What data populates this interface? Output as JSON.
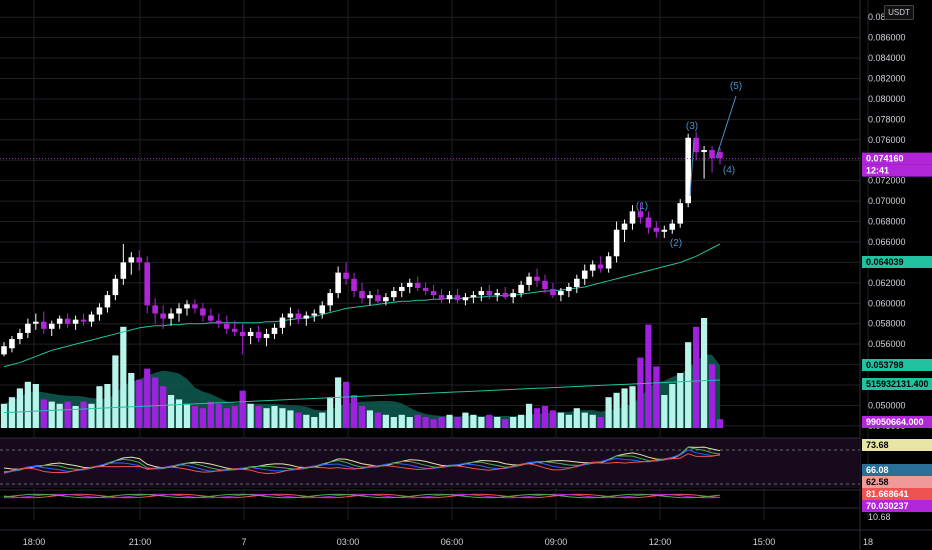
{
  "toolbar": {
    "currency": "USDT"
  },
  "colors": {
    "bull": "#ffffff",
    "bear": "#b126d9",
    "ma": "#22c1a0",
    "vol_bull": "#b8f4ea",
    "vol_bear": "#a020e0",
    "vol_ma": "#0e5b52",
    "grid": "#1e2126"
  },
  "chart_data": {
    "type": "candlestick",
    "price_axis": {
      "ticks": [
        "0.088000",
        "0.086000",
        "0.084000",
        "0.082000",
        "0.080000",
        "0.078000",
        "0.076000",
        "0.074000",
        "0.072000",
        "0.070000",
        "0.068000",
        "0.066000",
        "0.064000",
        "0.062000",
        "0.060000",
        "0.058000",
        "0.056000",
        "0.054000",
        "0.052000",
        "0.050000",
        "0.048000"
      ],
      "range": [
        0.0476,
        0.0889
      ]
    },
    "time_axis": {
      "labels": [
        "18:00",
        "21:00",
        "7",
        "03:00",
        "06:00",
        "09:00",
        "12:00",
        "15:00",
        "18"
      ]
    },
    "last_price": {
      "value": "0.074160",
      "countdown": "12:41"
    },
    "moving_average": {
      "value": "0.064039"
    },
    "indicator_tags": {
      "ma_line2": "0.053798",
      "volume_ma": "515932131.400",
      "volume": "99050664.000",
      "rsi": [
        "73.68",
        "66.08",
        "62.58"
      ],
      "osc": [
        "81.668641",
        "70.030237",
        "10.68"
      ]
    },
    "wave_labels": [
      "(1)",
      "(2)",
      "(3)",
      "(4)",
      "(5)"
    ],
    "candles": [
      [
        0.055,
        0.0562,
        0.0548,
        0.0558
      ],
      [
        0.0556,
        0.0568,
        0.0552,
        0.0565
      ],
      [
        0.0565,
        0.0575,
        0.056,
        0.0571
      ],
      [
        0.0571,
        0.0585,
        0.0566,
        0.058
      ],
      [
        0.058,
        0.059,
        0.0574,
        0.0582
      ],
      [
        0.0582,
        0.0592,
        0.057,
        0.0575
      ],
      [
        0.0575,
        0.0583,
        0.0568,
        0.058
      ],
      [
        0.058,
        0.0588,
        0.0575,
        0.0585
      ],
      [
        0.0585,
        0.059,
        0.0576,
        0.058
      ],
      [
        0.058,
        0.0588,
        0.0574,
        0.0584
      ],
      [
        0.0584,
        0.059,
        0.0578,
        0.0582
      ],
      [
        0.0582,
        0.0592,
        0.0577,
        0.0589
      ],
      [
        0.0589,
        0.06,
        0.0583,
        0.0596
      ],
      [
        0.0596,
        0.0612,
        0.0591,
        0.0608
      ],
      [
        0.0608,
        0.0628,
        0.0603,
        0.0624
      ],
      [
        0.0624,
        0.0658,
        0.0618,
        0.064
      ],
      [
        0.064,
        0.065,
        0.0628,
        0.0645
      ],
      [
        0.0645,
        0.0652,
        0.0632,
        0.064
      ],
      [
        0.064,
        0.0646,
        0.059,
        0.0598
      ],
      [
        0.0598,
        0.0605,
        0.058,
        0.059
      ],
      [
        0.059,
        0.0598,
        0.0575,
        0.0585
      ],
      [
        0.0585,
        0.0595,
        0.0578,
        0.059
      ],
      [
        0.059,
        0.06,
        0.0582,
        0.0595
      ],
      [
        0.0595,
        0.0603,
        0.0588,
        0.0599
      ],
      [
        0.0599,
        0.0604,
        0.059,
        0.0595
      ],
      [
        0.0595,
        0.06,
        0.0582,
        0.0588
      ],
      [
        0.0588,
        0.0595,
        0.058,
        0.0583
      ],
      [
        0.0583,
        0.059,
        0.0576,
        0.058
      ],
      [
        0.058,
        0.0588,
        0.057,
        0.0575
      ],
      [
        0.0575,
        0.0583,
        0.0568,
        0.0572
      ],
      [
        0.0572,
        0.058,
        0.055,
        0.0568
      ],
      [
        0.0568,
        0.0576,
        0.056,
        0.0572
      ],
      [
        0.0572,
        0.0578,
        0.0562,
        0.0566
      ],
      [
        0.0566,
        0.0575,
        0.0558,
        0.057
      ],
      [
        0.057,
        0.058,
        0.0565,
        0.0576
      ],
      [
        0.0576,
        0.059,
        0.057,
        0.0586
      ],
      [
        0.0586,
        0.0596,
        0.0578,
        0.059
      ],
      [
        0.059,
        0.0594,
        0.058,
        0.0585
      ],
      [
        0.0585,
        0.0592,
        0.0578,
        0.0588
      ],
      [
        0.0588,
        0.0594,
        0.0582,
        0.059
      ],
      [
        0.059,
        0.0602,
        0.0585,
        0.0598
      ],
      [
        0.0598,
        0.0614,
        0.0592,
        0.061
      ],
      [
        0.061,
        0.0636,
        0.0605,
        0.063
      ],
      [
        0.063,
        0.064,
        0.0618,
        0.0624
      ],
      [
        0.0624,
        0.063,
        0.0606,
        0.0612
      ],
      [
        0.0612,
        0.062,
        0.06,
        0.0605
      ],
      [
        0.0605,
        0.0612,
        0.0598,
        0.0608
      ],
      [
        0.0608,
        0.0614,
        0.06,
        0.0602
      ],
      [
        0.0602,
        0.061,
        0.0598,
        0.0606
      ],
      [
        0.0606,
        0.0616,
        0.0602,
        0.0612
      ],
      [
        0.0612,
        0.062,
        0.0606,
        0.0616
      ],
      [
        0.0616,
        0.0624,
        0.061,
        0.062
      ],
      [
        0.062,
        0.0626,
        0.0612,
        0.0615
      ],
      [
        0.0615,
        0.062,
        0.0608,
        0.0612
      ],
      [
        0.0612,
        0.0618,
        0.0604,
        0.0608
      ],
      [
        0.0608,
        0.0614,
        0.06,
        0.0604
      ],
      [
        0.0604,
        0.0612,
        0.06,
        0.0608
      ],
      [
        0.0608,
        0.0614,
        0.06,
        0.0603
      ],
      [
        0.0603,
        0.061,
        0.0598,
        0.0606
      ],
      [
        0.0606,
        0.0612,
        0.06,
        0.0608
      ],
      [
        0.0608,
        0.0616,
        0.0602,
        0.0612
      ],
      [
        0.0612,
        0.0618,
        0.0604,
        0.0608
      ],
      [
        0.0608,
        0.0614,
        0.0602,
        0.061
      ],
      [
        0.061,
        0.0616,
        0.0604,
        0.0606
      ],
      [
        0.0606,
        0.0614,
        0.06,
        0.061
      ],
      [
        0.061,
        0.0622,
        0.0606,
        0.0618
      ],
      [
        0.0618,
        0.063,
        0.0612,
        0.0626
      ],
      [
        0.0626,
        0.0634,
        0.0616,
        0.0622
      ],
      [
        0.0622,
        0.0628,
        0.061,
        0.0614
      ],
      [
        0.0614,
        0.062,
        0.0605,
        0.0608
      ],
      [
        0.0608,
        0.0615,
        0.0602,
        0.0612
      ],
      [
        0.0612,
        0.062,
        0.0606,
        0.0616
      ],
      [
        0.0616,
        0.0628,
        0.061,
        0.0624
      ],
      [
        0.0624,
        0.0638,
        0.0618,
        0.0632
      ],
      [
        0.0632,
        0.0642,
        0.0626,
        0.0638
      ],
      [
        0.0638,
        0.0646,
        0.063,
        0.0634
      ],
      [
        0.0634,
        0.065,
        0.063,
        0.0646
      ],
      [
        0.0646,
        0.068,
        0.064,
        0.0672
      ],
      [
        0.0672,
        0.0682,
        0.066,
        0.0678
      ],
      [
        0.0678,
        0.0696,
        0.0672,
        0.069
      ],
      [
        0.069,
        0.0698,
        0.0678,
        0.0684
      ],
      [
        0.0684,
        0.069,
        0.0668,
        0.0674
      ],
      [
        0.0674,
        0.068,
        0.0664,
        0.067
      ],
      [
        0.067,
        0.0676,
        0.0664,
        0.0672
      ],
      [
        0.0672,
        0.0682,
        0.0668,
        0.0678
      ],
      [
        0.0678,
        0.0702,
        0.0674,
        0.0698
      ],
      [
        0.0698,
        0.0766,
        0.0694,
        0.0762
      ],
      [
        0.0762,
        0.0768,
        0.074,
        0.0748
      ],
      [
        0.0748,
        0.0754,
        0.0722,
        0.075
      ],
      [
        0.075,
        0.0754,
        0.0728,
        0.0742
      ],
      [
        0.0748,
        0.0752,
        0.0736,
        0.0742
      ]
    ],
    "volumes": [
      0.22,
      0.28,
      0.36,
      0.42,
      0.4,
      0.26,
      0.24,
      0.22,
      0.24,
      0.2,
      0.24,
      0.22,
      0.38,
      0.4,
      0.66,
      0.92,
      0.5,
      0.44,
      0.54,
      0.46,
      0.38,
      0.3,
      0.26,
      0.22,
      0.2,
      0.18,
      0.24,
      0.22,
      0.18,
      0.2,
      0.34,
      0.22,
      0.2,
      0.18,
      0.2,
      0.18,
      0.16,
      0.14,
      0.12,
      0.1,
      0.14,
      0.28,
      0.46,
      0.42,
      0.3,
      0.2,
      0.16,
      0.14,
      0.12,
      0.1,
      0.12,
      0.1,
      0.12,
      0.1,
      0.08,
      0.1,
      0.12,
      0.1,
      0.14,
      0.12,
      0.1,
      0.12,
      0.1,
      0.08,
      0.1,
      0.12,
      0.22,
      0.18,
      0.2,
      0.16,
      0.14,
      0.12,
      0.18,
      0.14,
      0.12,
      0.1,
      0.28,
      0.32,
      0.36,
      0.38,
      0.64,
      0.94,
      0.56,
      0.3,
      0.4,
      0.5,
      0.78,
      0.92,
      1.0,
      0.58,
      0.08
    ],
    "ma_series": [
      0.0538,
      0.054,
      0.0542,
      0.0545,
      0.0548,
      0.0551,
      0.0554,
      0.0556,
      0.0558,
      0.056,
      0.0562,
      0.0564,
      0.0566,
      0.0568,
      0.057,
      0.0572,
      0.0574,
      0.0576,
      0.0577,
      0.0578,
      0.0578,
      0.0579,
      0.0579,
      0.058,
      0.058,
      0.058,
      0.0581,
      0.0581,
      0.0581,
      0.0581,
      0.0581,
      0.0581,
      0.0581,
      0.0582,
      0.0582,
      0.0583,
      0.0584,
      0.0585,
      0.0586,
      0.0587,
      0.0589,
      0.0591,
      0.0593,
      0.0595,
      0.0596,
      0.0597,
      0.0598,
      0.0599,
      0.06,
      0.0601,
      0.0602,
      0.0602,
      0.0603,
      0.0603,
      0.0604,
      0.0604,
      0.0605,
      0.0605,
      0.0605,
      0.0606,
      0.0606,
      0.0607,
      0.0607,
      0.0608,
      0.0608,
      0.0609,
      0.061,
      0.0611,
      0.0612,
      0.0612,
      0.0613,
      0.0614,
      0.0615,
      0.0616,
      0.0618,
      0.062,
      0.0622,
      0.0624,
      0.0626,
      0.0628,
      0.063,
      0.0632,
      0.0634,
      0.0636,
      0.0638,
      0.064,
      0.0643,
      0.0646,
      0.065,
      0.0654,
      0.0658
    ]
  }
}
